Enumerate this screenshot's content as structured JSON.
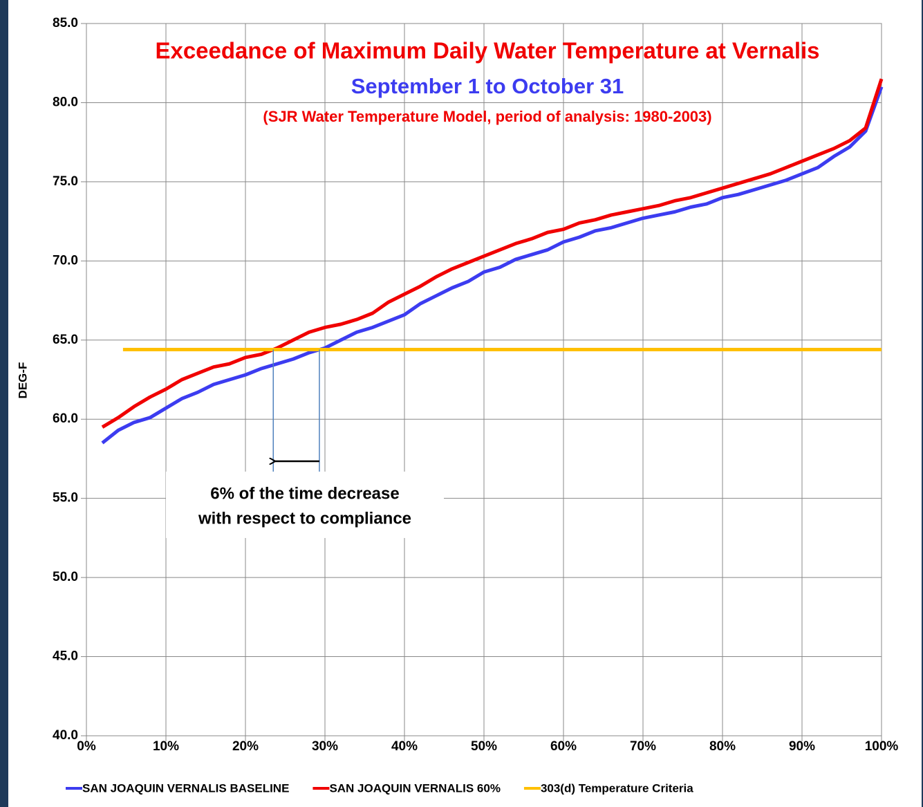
{
  "chart_data": {
    "type": "line",
    "title": "Exceedance of Maximum Daily Water Temperature at Vernalis",
    "subtitle": "September 1 to October 31",
    "note": "(SJR Water Temperature Model, period of analysis: 1980-2003)",
    "y_label": "DEG-F",
    "x": [
      2,
      4,
      6,
      8,
      10,
      12,
      14,
      16,
      18,
      20,
      22,
      24,
      26,
      28,
      30,
      32,
      34,
      36,
      38,
      40,
      42,
      44,
      46,
      48,
      50,
      52,
      54,
      56,
      58,
      60,
      62,
      64,
      66,
      68,
      70,
      72,
      74,
      76,
      78,
      80,
      82,
      84,
      86,
      88,
      90,
      92,
      94,
      96,
      98,
      100
    ],
    "series": [
      {
        "name": "SAN JOAQUIN VERNALIS BASELINE",
        "color": "#3c3cf0",
        "values": [
          58.5,
          59.3,
          59.8,
          60.1,
          60.7,
          61.3,
          61.7,
          62.2,
          62.5,
          62.8,
          63.2,
          63.5,
          63.8,
          64.2,
          64.5,
          65.0,
          65.5,
          65.8,
          66.2,
          66.6,
          67.3,
          67.8,
          68.3,
          68.7,
          69.3,
          69.6,
          70.1,
          70.4,
          70.7,
          71.2,
          71.5,
          71.9,
          72.1,
          72.4,
          72.7,
          72.9,
          73.1,
          73.4,
          73.6,
          74.0,
          74.2,
          74.5,
          74.8,
          75.1,
          75.5,
          75.9,
          76.6,
          77.2,
          78.2,
          81.0
        ]
      },
      {
        "name": "SAN JOAQUIN VERNALIS 60%",
        "color": "#f00000",
        "values": [
          59.5,
          60.1,
          60.8,
          61.4,
          61.9,
          62.5,
          62.9,
          63.3,
          63.5,
          63.9,
          64.1,
          64.5,
          65.0,
          65.5,
          65.8,
          66.0,
          66.3,
          66.7,
          67.4,
          67.9,
          68.4,
          69.0,
          69.5,
          69.9,
          70.3,
          70.7,
          71.1,
          71.4,
          71.8,
          72.0,
          72.4,
          72.6,
          72.9,
          73.1,
          73.3,
          73.5,
          73.8,
          74.0,
          74.3,
          74.6,
          74.9,
          75.2,
          75.5,
          75.9,
          76.3,
          76.7,
          77.1,
          77.6,
          78.4,
          81.5
        ]
      },
      {
        "name": "303(d) Temperature Criteria",
        "color": "#ffc000",
        "x": [
          4.6,
          100
        ],
        "values": [
          64.4,
          64.4
        ]
      }
    ],
    "annotation": {
      "text": [
        "6% of the time decrease",
        "with respect to compliance"
      ],
      "x": [
        29.3,
        23.5
      ]
    },
    "xlim": [
      0,
      100
    ],
    "xticks": [
      {
        "value": 0,
        "label": "0%"
      },
      {
        "value": 10,
        "label": "10%"
      },
      {
        "value": 20,
        "label": "20%"
      },
      {
        "value": 30,
        "label": "30%"
      },
      {
        "value": 40,
        "label": "40%"
      },
      {
        "value": 50,
        "label": "50%"
      },
      {
        "value": 60,
        "label": "60%"
      },
      {
        "value": 70,
        "label": "70%"
      },
      {
        "value": 80,
        "label": "80%"
      },
      {
        "value": 90,
        "label": "90%"
      },
      {
        "value": 100,
        "label": "100%"
      }
    ],
    "ylim": [
      40,
      85
    ],
    "yticks": [
      {
        "value": 40,
        "label": "40.0"
      },
      {
        "value": 45,
        "label": "45.0"
      },
      {
        "value": 50,
        "label": "50.0"
      },
      {
        "value": 55,
        "label": "55.0"
      },
      {
        "value": 60,
        "label": "60.0"
      },
      {
        "value": 65,
        "label": "65.0"
      },
      {
        "value": 70,
        "label": "70.0"
      },
      {
        "value": 75,
        "label": "75.0"
      },
      {
        "value": 80,
        "label": "80.0"
      },
      {
        "value": 85,
        "label": "85.0"
      }
    ],
    "grid": true,
    "legend": "bottom"
  }
}
